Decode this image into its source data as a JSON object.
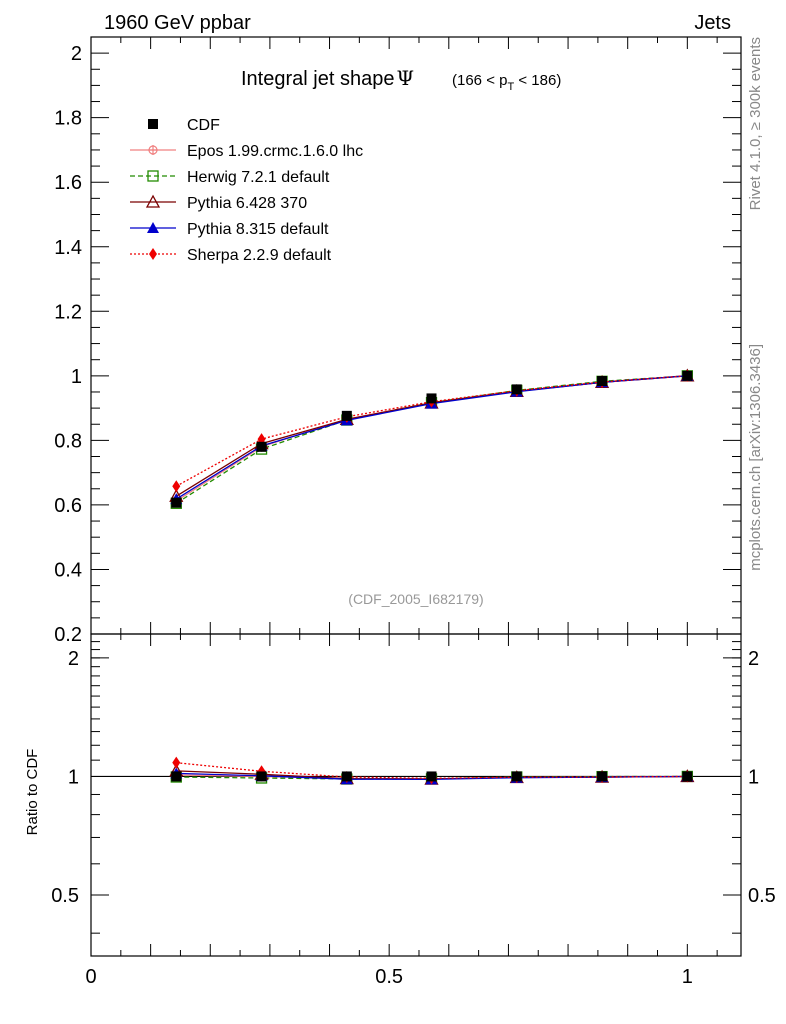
{
  "header": {
    "left": "1960 GeV ppbar",
    "right": "Jets"
  },
  "side_labels": {
    "rivet": "Rivet 4.1.0, ≥ 300k events",
    "mcplots": "mcplots.cern.ch [arXiv:1306.3436]"
  },
  "title": {
    "main": "Integral jet shape",
    "symbol": "Ψ",
    "range_open": "(166 < p",
    "range_sub": "T",
    "range_close": " < 186)"
  },
  "watermark": "(CDF_2005_I682179)",
  "ratio_ylabel": "Ratio to CDF",
  "chart_data": {
    "type": "line",
    "x": [
      0.143,
      0.286,
      0.429,
      0.571,
      0.714,
      0.857,
      1.0
    ],
    "xlim": [
      0,
      1.09
    ],
    "x_ticks": [
      {
        "value": 0,
        "label": "0"
      },
      {
        "value": 0.5,
        "label": "0.5"
      },
      {
        "value": 1,
        "label": "1"
      }
    ],
    "main": {
      "ylim": [
        0.2,
        2.05
      ],
      "y_ticks": [
        {
          "value": 0.2,
          "label": "0.2"
        },
        {
          "value": 0.4,
          "label": "0.4"
        },
        {
          "value": 0.6,
          "label": "0.6"
        },
        {
          "value": 0.8,
          "label": "0.8"
        },
        {
          "value": 1.0,
          "label": "1"
        },
        {
          "value": 1.2,
          "label": "1.2"
        },
        {
          "value": 1.4,
          "label": "1.4"
        },
        {
          "value": 1.6,
          "label": "1.6"
        },
        {
          "value": 1.8,
          "label": "1.8"
        },
        {
          "value": 2.0,
          "label": "2"
        }
      ]
    },
    "ratio": {
      "ylim": [
        0.35,
        2.3
      ],
      "log": true,
      "y_ticks": [
        {
          "value": 0.5,
          "label": "0.5"
        },
        {
          "value": 1,
          "label": "1"
        },
        {
          "value": 2,
          "label": "2"
        }
      ]
    },
    "series": [
      {
        "name": "CDF",
        "legend": "CDF",
        "color": "#000000",
        "style": "none",
        "marker": "square-filled",
        "values": [
          0.607,
          0.78,
          0.876,
          0.93,
          0.958,
          0.984,
          1.0
        ]
      },
      {
        "name": "Epos",
        "legend": "Epos 1.99.crmc.1.6.0 lhc",
        "color": "#f08080",
        "style": "solid",
        "marker": "cross-circle",
        "values": [
          0.612,
          0.78,
          0.866,
          0.917,
          0.952,
          0.98,
          1.0
        ]
      },
      {
        "name": "Herwig",
        "legend": "Herwig 7.2.1 default",
        "color": "#228b00",
        "style": "dashed",
        "marker": "square-open",
        "values": [
          0.605,
          0.773,
          0.863,
          0.917,
          0.955,
          0.983,
          1.0
        ]
      },
      {
        "name": "Pythia6",
        "legend": "Pythia 6.428 370",
        "color": "#7a0000",
        "style": "solid",
        "marker": "triangle-open",
        "values": [
          0.627,
          0.79,
          0.865,
          0.916,
          0.952,
          0.98,
          1.0
        ]
      },
      {
        "name": "Pythia8",
        "legend": "Pythia 8.315 default",
        "color": "#0000cc",
        "style": "solid",
        "marker": "triangle-filled",
        "values": [
          0.618,
          0.783,
          0.862,
          0.914,
          0.951,
          0.98,
          1.0
        ]
      },
      {
        "name": "Sherpa",
        "legend": "Sherpa 2.2.9 default",
        "color": "#ee0000",
        "style": "dotted",
        "marker": "diamond-filled",
        "values": [
          0.658,
          0.804,
          0.873,
          0.92,
          0.954,
          0.981,
          1.0
        ]
      }
    ]
  }
}
